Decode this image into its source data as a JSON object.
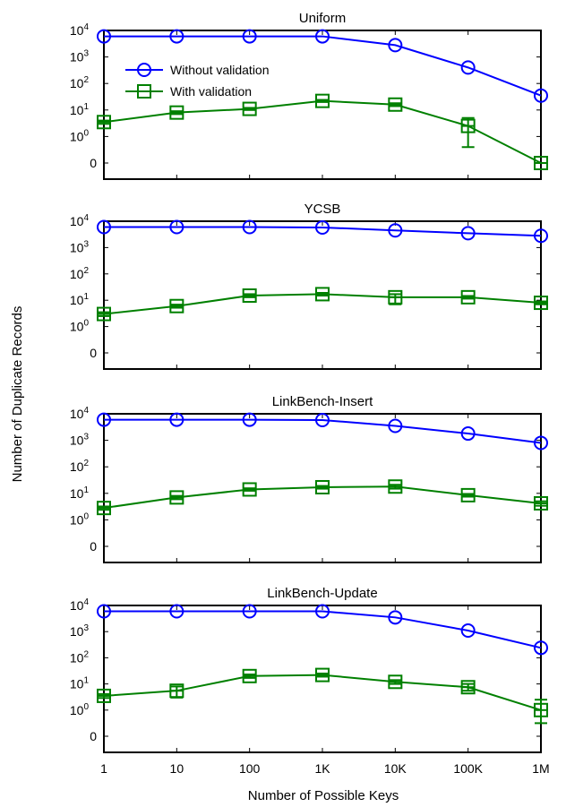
{
  "figure": {
    "ylabel": "Number of Duplicate Records",
    "xlabel": "Number of Possible Keys",
    "x_tick_labels": [
      "1",
      "10",
      "100",
      "1K",
      "10K",
      "100K",
      "1M"
    ],
    "y_tick_labels": [
      {
        "base": "0",
        "exp": ""
      },
      {
        "base": "10",
        "exp": "0"
      },
      {
        "base": "10",
        "exp": "1"
      },
      {
        "base": "10",
        "exp": "2"
      },
      {
        "base": "10",
        "exp": "3"
      },
      {
        "base": "10",
        "exp": "4"
      }
    ],
    "colors": {
      "without": "#0000ff",
      "with": "#008000"
    }
  },
  "chart_data": [
    {
      "type": "line",
      "title": "Uniform",
      "x": [
        1,
        10,
        100,
        1000,
        10000,
        100000,
        1000000
      ],
      "x_scale": "log",
      "y_scale": "symlog",
      "ylim": [
        0,
        10000
      ],
      "grid": false,
      "legend": "upper-left",
      "series": [
        {
          "name": "Without validation",
          "marker": "circle",
          "values": [
            6000,
            6000,
            6000,
            6000,
            2800,
            400,
            35
          ]
        },
        {
          "name": "With validation",
          "marker": "square",
          "values": [
            3.5,
            8,
            11,
            22,
            16,
            2.5,
            0
          ],
          "error_low": [
            0.5,
            1,
            1,
            2,
            2,
            1.9,
            0
          ],
          "error_high": [
            0.5,
            1,
            1,
            2,
            2,
            2.5,
            0
          ]
        }
      ]
    },
    {
      "type": "line",
      "title": "YCSB",
      "x": [
        1,
        10,
        100,
        1000,
        10000,
        100000,
        1000000
      ],
      "x_scale": "log",
      "y_scale": "symlog",
      "ylim": [
        0,
        10000
      ],
      "grid": false,
      "series": [
        {
          "name": "Without validation",
          "marker": "circle",
          "values": [
            6000,
            6000,
            6000,
            5800,
            4500,
            3500,
            2800
          ]
        },
        {
          "name": "With validation",
          "marker": "square",
          "values": [
            3,
            6,
            15,
            17,
            13,
            13,
            8
          ],
          "error_low": [
            0.5,
            0.8,
            2,
            2,
            6,
            1.5,
            1
          ],
          "error_high": [
            0.5,
            0.8,
            2,
            2,
            4,
            1.5,
            1
          ]
        }
      ]
    },
    {
      "type": "line",
      "title": "LinkBench-Insert",
      "x": [
        1,
        10,
        100,
        1000,
        10000,
        100000,
        1000000
      ],
      "x_scale": "log",
      "y_scale": "symlog",
      "ylim": [
        0,
        10000
      ],
      "grid": false,
      "series": [
        {
          "name": "Without validation",
          "marker": "circle",
          "values": [
            6000,
            6000,
            6000,
            5800,
            3500,
            1800,
            800
          ]
        },
        {
          "name": "With validation",
          "marker": "square",
          "values": [
            2.8,
            7,
            14,
            17,
            18,
            8.5,
            4.2
          ],
          "error_low": [
            0.4,
            1,
            1.5,
            2,
            3,
            1,
            0.8
          ],
          "error_high": [
            0.4,
            1,
            1.5,
            2,
            3,
            1,
            0.8
          ]
        }
      ]
    },
    {
      "type": "line",
      "title": "LinkBench-Update",
      "x": [
        1,
        10,
        100,
        1000,
        10000,
        100000,
        1000000
      ],
      "x_scale": "log",
      "y_scale": "symlog",
      "ylim": [
        0,
        10000
      ],
      "grid": false,
      "series": [
        {
          "name": "Without validation",
          "marker": "circle",
          "values": [
            6000,
            6000,
            6000,
            6000,
            3500,
            1100,
            240
          ]
        },
        {
          "name": "With validation",
          "marker": "square",
          "values": [
            3.5,
            5.5,
            20,
            22,
            12,
            7.5,
            1
          ],
          "error_low": [
            0.6,
            2.5,
            3,
            3,
            2,
            2,
            0.5
          ],
          "error_high": [
            0.6,
            2.5,
            3,
            3,
            2,
            2.5,
            1.5
          ]
        }
      ]
    }
  ]
}
